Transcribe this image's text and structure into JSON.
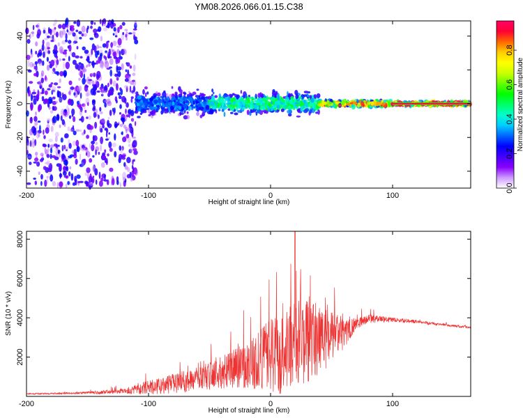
{
  "title": "YM08.2026.066.01.15.C38",
  "chart_data": [
    {
      "type": "heatmap",
      "name": "spectrogram",
      "xlabel": "Height of straight line (km)",
      "ylabel": "Frequency (Hz)",
      "xlim": [
        -200,
        164
      ],
      "ylim": [
        -50,
        49
      ],
      "xticks": [
        -200,
        -100,
        0,
        100
      ],
      "yticks": [
        -40,
        -20,
        0,
        20,
        40
      ],
      "colorbar": {
        "label": "Normalized spectral amplitude",
        "range": [
          0,
          0.97
        ],
        "ticks": [
          0.0,
          0.2,
          0.4,
          0.6,
          0.8
        ],
        "tick_labels": [
          "0.0",
          "0.2",
          "0.4",
          "0.6",
          "0.8"
        ],
        "colormap": [
          "#ffffff",
          "#cc99ff",
          "#8800ff",
          "#4400ff",
          "#0000ff",
          "#0066ff",
          "#00ccff",
          "#00ffcc",
          "#00ff66",
          "#00ff00",
          "#66ff00",
          "#ccff00",
          "#ffff00",
          "#ffcc00",
          "#ff6600",
          "#ff0033",
          "#ff0066"
        ]
      },
      "bands": [
        {
          "x_from": -200,
          "x_to": -110,
          "freq_spread_hz": 49,
          "level": 0.18
        },
        {
          "x_from": -110,
          "x_to": -50,
          "freq_spread_hz": 12,
          "level": 0.3
        },
        {
          "x_from": -50,
          "x_to": 40,
          "freq_spread_hz": 10,
          "level": 0.45
        },
        {
          "x_from": 40,
          "x_to": 100,
          "freq_spread_hz": 3,
          "level": 0.75
        },
        {
          "x_from": 100,
          "x_to": 164,
          "freq_spread_hz": 2,
          "level": 0.95
        }
      ]
    },
    {
      "type": "line",
      "name": "snr",
      "xlabel": "Height of straight line (km)",
      "ylabel": "SNR (10 * v/v)",
      "xlim": [
        -200,
        164
      ],
      "ylim": [
        0,
        8400
      ],
      "xticks": [
        -200,
        -100,
        0,
        100
      ],
      "yticks": [
        2000,
        4000,
        6000,
        8000
      ],
      "color": "#ee3333",
      "envelope": {
        "x": [
          -200,
          -160,
          -140,
          -120,
          -100,
          -80,
          -60,
          -40,
          -20,
          0,
          10,
          20,
          30,
          40,
          50,
          60,
          70,
          80,
          100,
          120,
          140,
          164
        ],
        "baseline": [
          130,
          160,
          200,
          280,
          450,
          650,
          900,
          1200,
          1600,
          2000,
          2300,
          2500,
          2700,
          2900,
          3000,
          3200,
          3700,
          3950,
          3900,
          3800,
          3650,
          3500
        ],
        "amplitude": [
          60,
          80,
          150,
          250,
          650,
          900,
          1100,
          1500,
          2100,
          3500,
          4000,
          4000,
          3800,
          3200,
          2400,
          1500,
          500,
          400,
          200,
          150,
          120,
          100
        ]
      },
      "peak": {
        "x": 20,
        "y": 8400
      }
    }
  ]
}
